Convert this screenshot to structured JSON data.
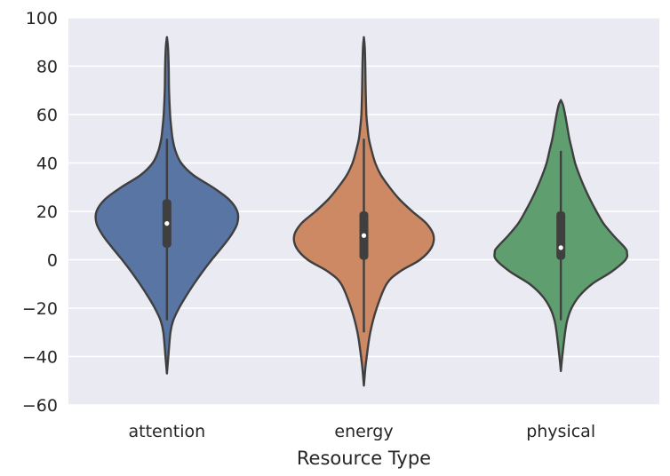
{
  "chart_data": {
    "type": "violin",
    "title": "",
    "xlabel": "Resource Type",
    "ylabel": "",
    "ylim": [
      -60,
      100
    ],
    "yticks": [
      -60,
      -40,
      -20,
      0,
      20,
      40,
      60,
      80,
      100
    ],
    "ytick_labels": [
      "−60",
      "−40",
      "−20",
      "0",
      "20",
      "40",
      "60",
      "80",
      "100"
    ],
    "grid": true,
    "legend": "none",
    "categories": [
      "attention",
      "energy",
      "physical"
    ],
    "series": [
      {
        "category": "attention",
        "color": "#5975A4",
        "extent": [
          -47,
          92
        ],
        "whiskers": [
          -25,
          50
        ],
        "quartiles": [
          5,
          25
        ],
        "median": 15,
        "density_profile": [
          [
            -47,
            0.0
          ],
          [
            -40,
            0.02
          ],
          [
            -30,
            0.05
          ],
          [
            -25,
            0.09
          ],
          [
            -20,
            0.17
          ],
          [
            -15,
            0.27
          ],
          [
            -10,
            0.38
          ],
          [
            -5,
            0.5
          ],
          [
            0,
            0.63
          ],
          [
            5,
            0.77
          ],
          [
            10,
            0.9
          ],
          [
            15,
            0.99
          ],
          [
            20,
            0.99
          ],
          [
            25,
            0.87
          ],
          [
            30,
            0.64
          ],
          [
            35,
            0.37
          ],
          [
            40,
            0.2
          ],
          [
            45,
            0.12
          ],
          [
            50,
            0.08
          ],
          [
            55,
            0.06
          ],
          [
            60,
            0.045
          ],
          [
            70,
            0.03
          ],
          [
            80,
            0.025
          ],
          [
            88,
            0.015
          ],
          [
            92,
            0.0
          ]
        ]
      },
      {
        "category": "energy",
        "color": "#CC8963",
        "extent": [
          -52,
          92
        ],
        "whiskers": [
          -30,
          50
        ],
        "quartiles": [
          0,
          20
        ],
        "median": 10,
        "density_profile": [
          [
            -52,
            0.0
          ],
          [
            -45,
            0.02
          ],
          [
            -40,
            0.04
          ],
          [
            -30,
            0.09
          ],
          [
            -20,
            0.18
          ],
          [
            -10,
            0.32
          ],
          [
            -5,
            0.5
          ],
          [
            0,
            0.79
          ],
          [
            5,
            0.95
          ],
          [
            10,
            0.98
          ],
          [
            15,
            0.88
          ],
          [
            20,
            0.68
          ],
          [
            25,
            0.5
          ],
          [
            30,
            0.36
          ],
          [
            35,
            0.24
          ],
          [
            40,
            0.16
          ],
          [
            45,
            0.11
          ],
          [
            50,
            0.07
          ],
          [
            55,
            0.05
          ],
          [
            60,
            0.035
          ],
          [
            70,
            0.025
          ],
          [
            80,
            0.02
          ],
          [
            88,
            0.012
          ],
          [
            92,
            0.0
          ]
        ]
      },
      {
        "category": "physical",
        "color": "#5F9E6E",
        "extent": [
          -46,
          66
        ],
        "whiskers": [
          -25,
          45
        ],
        "quartiles": [
          0,
          20
        ],
        "median": 5,
        "density_profile": [
          [
            -46,
            0.0
          ],
          [
            -40,
            0.02
          ],
          [
            -30,
            0.06
          ],
          [
            -25,
            0.09
          ],
          [
            -20,
            0.15
          ],
          [
            -15,
            0.26
          ],
          [
            -10,
            0.44
          ],
          [
            -5,
            0.71
          ],
          [
            0,
            0.91
          ],
          [
            3,
            0.93
          ],
          [
            5,
            0.9
          ],
          [
            10,
            0.74
          ],
          [
            15,
            0.6
          ],
          [
            20,
            0.5
          ],
          [
            25,
            0.41
          ],
          [
            30,
            0.33
          ],
          [
            35,
            0.26
          ],
          [
            40,
            0.2
          ],
          [
            45,
            0.16
          ],
          [
            50,
            0.12
          ],
          [
            55,
            0.09
          ],
          [
            60,
            0.06
          ],
          [
            64,
            0.03
          ],
          [
            66,
            0.0
          ]
        ]
      }
    ]
  }
}
